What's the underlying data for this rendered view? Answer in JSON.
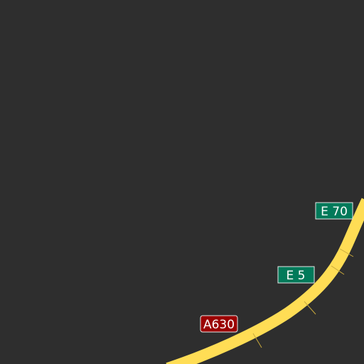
{
  "map": {
    "background_color": "#2e2e2e",
    "road_color": "#ffdd55",
    "road_edge_color": "#c9a93c",
    "shields": {
      "e70": {
        "text": "E 70",
        "color": "#017a5a"
      },
      "e5": {
        "text": "E 5",
        "color": "#017a5a"
      },
      "a630": {
        "text": "A630",
        "color": "#9b0000"
      }
    }
  }
}
